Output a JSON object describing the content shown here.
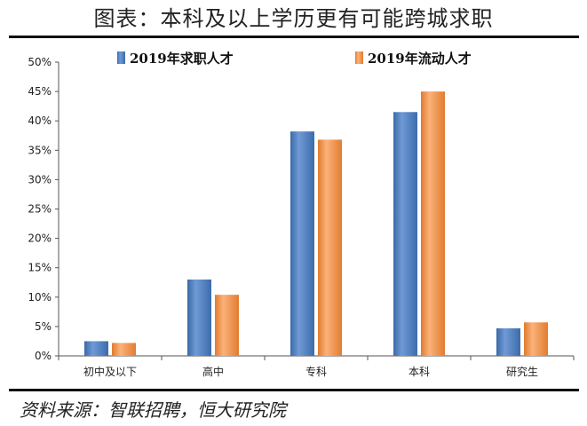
{
  "header": {
    "title": "图表：本科及以上学历更有可能跨城求职"
  },
  "footer": {
    "source": "资料来源：智联招聘，恒大研究院"
  },
  "chart_data": {
    "type": "bar",
    "title": "图表：本科及以上学历更有可能跨城求职",
    "xlabel": "",
    "ylabel": "",
    "categories": [
      "初中及以下",
      "高中",
      "专科",
      "本科",
      "研究生"
    ],
    "series": [
      {
        "name": "2019年求职人才",
        "color": "#4f81bd",
        "values": [
          2.5,
          13.0,
          38.2,
          41.5,
          4.7
        ]
      },
      {
        "name": "2019年流动人才",
        "color": "#f79646",
        "values": [
          2.2,
          10.4,
          36.8,
          45.0,
          5.7
        ]
      }
    ],
    "ylim": [
      0,
      50
    ],
    "yticks": [
      "0%",
      "5%",
      "10%",
      "15%",
      "20%",
      "25%",
      "30%",
      "35%",
      "40%",
      "45%",
      "50%"
    ],
    "ytick_values": [
      0,
      5,
      10,
      15,
      20,
      25,
      30,
      35,
      40,
      45,
      50
    ],
    "grid": false,
    "legend_position": "top"
  }
}
